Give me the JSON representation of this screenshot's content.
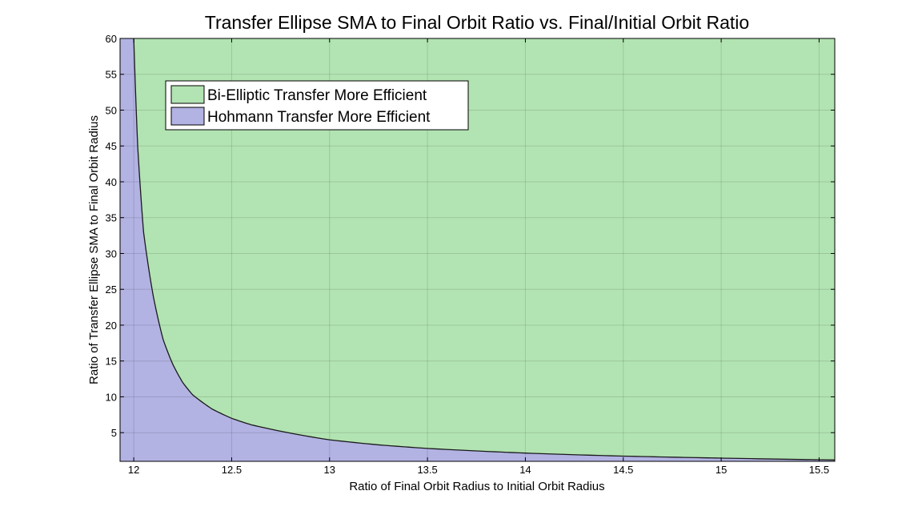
{
  "chart_data": {
    "type": "area",
    "title": "Transfer Ellipse SMA to Final Orbit Ratio vs. Final/Initial Orbit Ratio",
    "xlabel": "Ratio of Final Orbit Radius to Initial Orbit Radius",
    "ylabel": "Ratio of Transfer Ellipse SMA to Final Orbit Radius",
    "xlim": [
      11.93,
      15.58
    ],
    "ylim": [
      1,
      60
    ],
    "xticks": [
      12,
      12.5,
      13,
      13.5,
      14,
      14.5,
      15,
      15.5
    ],
    "xtick_labels": [
      "12",
      "12.5",
      "13",
      "13.5",
      "14",
      "14.5",
      "15",
      "15.5"
    ],
    "yticks": [
      5,
      10,
      15,
      20,
      25,
      30,
      35,
      40,
      45,
      50,
      55,
      60
    ],
    "ytick_labels": [
      "5",
      "10",
      "15",
      "20",
      "25",
      "30",
      "35",
      "40",
      "45",
      "50",
      "55",
      "60"
    ],
    "grid": true,
    "legend_position": "top-left",
    "series": [
      {
        "name": "Bi-Elliptic Transfer More Efficient",
        "color": "#b2e3b2",
        "region": "above-boundary"
      },
      {
        "name": "Hohmann Transfer More Efficient",
        "color": "#b2b2e3",
        "region": "below-boundary"
      }
    ],
    "boundary": {
      "x": [
        12.0,
        12.02,
        12.05,
        12.1,
        12.15,
        12.2,
        12.25,
        12.3,
        12.4,
        12.5,
        12.6,
        12.75,
        13.0,
        13.25,
        13.5,
        13.75,
        14.0,
        14.25,
        14.5,
        14.75,
        15.0,
        15.25,
        15.5
      ],
      "y": [
        60,
        45,
        33,
        24,
        18,
        14.5,
        12.0,
        10.3,
        8.3,
        7.0,
        6.1,
        5.2,
        4.0,
        3.3,
        2.8,
        2.45,
        2.15,
        1.92,
        1.73,
        1.58,
        1.45,
        1.33,
        1.22
      ]
    }
  }
}
